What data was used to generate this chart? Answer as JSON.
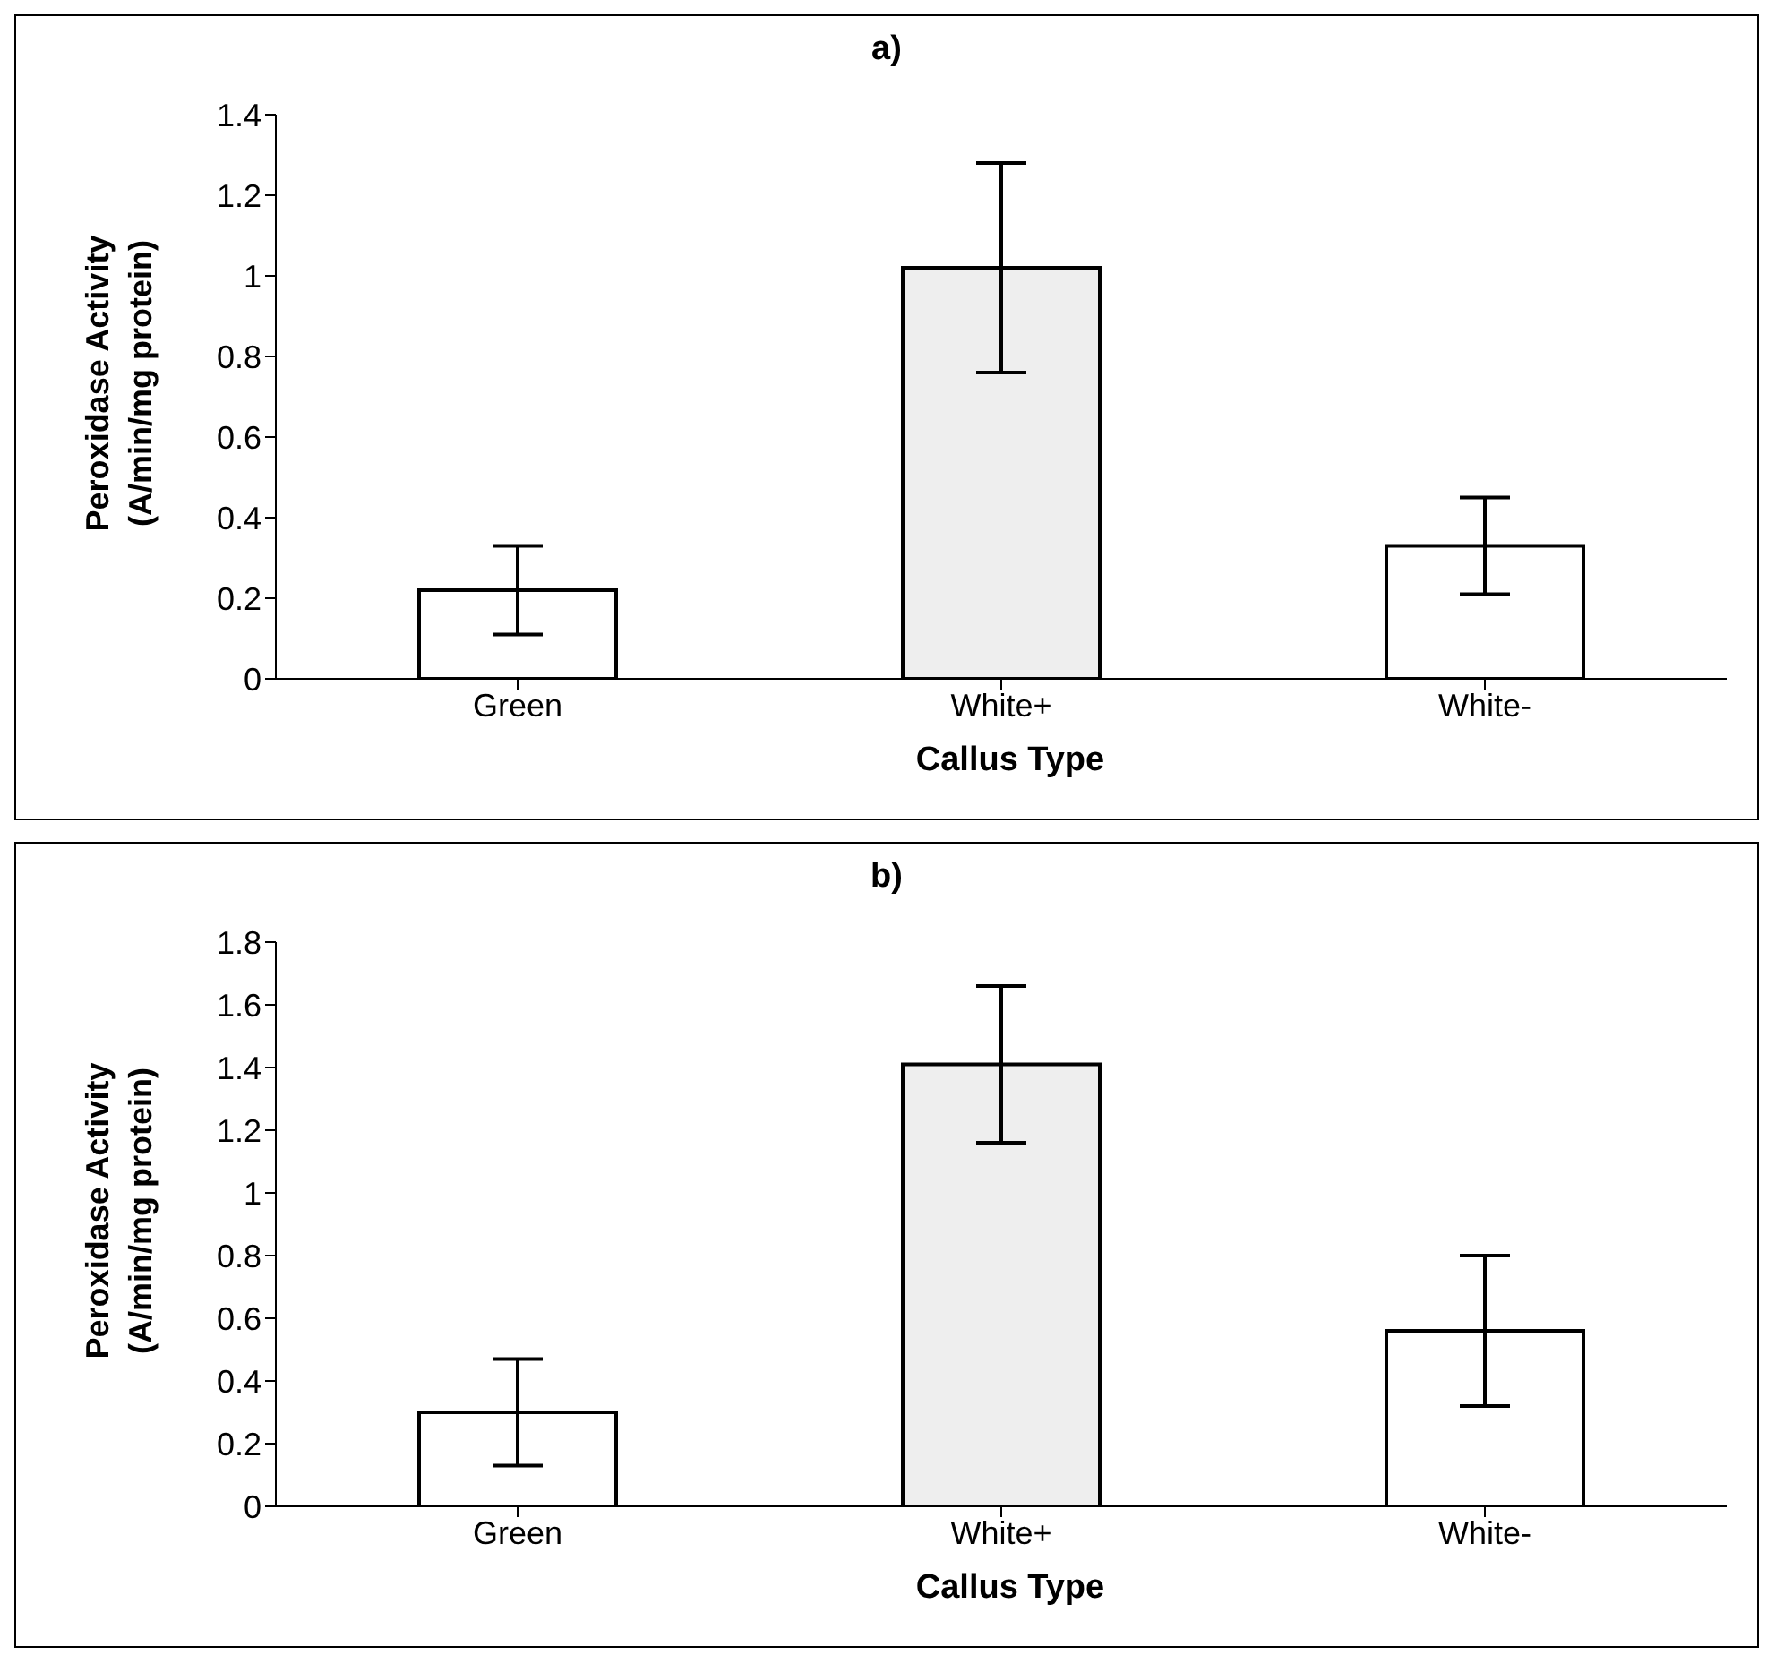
{
  "chart_data": [
    {
      "type": "bar",
      "title": "a)",
      "xlabel": "Callus Type",
      "ylabel": "Peroxidase Activity\n(A/min/mg protein)",
      "categories": [
        "Green",
        "White+",
        "White-"
      ],
      "values": [
        0.22,
        1.02,
        0.33
      ],
      "errors": [
        0.11,
        0.26,
        0.12
      ],
      "colors": [
        "#ffffff",
        "#eeeeee",
        "#ffffff"
      ],
      "ylim": [
        0,
        1.4
      ],
      "yticks": [
        0,
        0.2,
        0.4,
        0.6,
        0.8,
        1,
        1.2,
        1.4
      ],
      "grid": false,
      "legend": false
    },
    {
      "type": "bar",
      "title": "b)",
      "xlabel": "Callus Type",
      "ylabel": "Peroxidase Activity\n(A/min/mg protein)",
      "categories": [
        "Green",
        "White+",
        "White-"
      ],
      "values": [
        0.3,
        1.41,
        0.56
      ],
      "errors": [
        0.17,
        0.25,
        0.24
      ],
      "colors": [
        "#ffffff",
        "#eeeeee",
        "#ffffff"
      ],
      "ylim": [
        0,
        1.8
      ],
      "yticks": [
        0,
        0.2,
        0.4,
        0.6,
        0.8,
        1,
        1.2,
        1.4,
        1.6,
        1.8
      ],
      "grid": false,
      "legend": false
    }
  ]
}
